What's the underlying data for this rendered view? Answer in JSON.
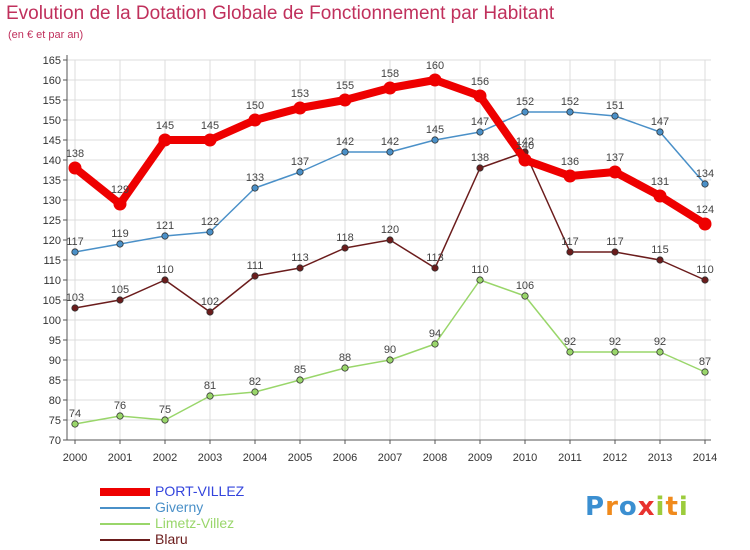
{
  "header": {
    "title": "Evolution de la Dotation Globale de Fonctionnement par Habitant",
    "subtitle": "(en € et par an)"
  },
  "logo": {
    "letters": [
      "P",
      "r",
      "o",
      "x",
      "i",
      "t",
      "i"
    ],
    "colors": [
      "#3b8fd1",
      "#f08a1c",
      "#3b8fd1",
      "#e8322f",
      "#9ccc3c",
      "#f08a1c",
      "#9ccc3c"
    ]
  },
  "chart_data": {
    "type": "line",
    "x": [
      "2000",
      "2001",
      "2002",
      "2003",
      "2004",
      "2005",
      "2006",
      "2007",
      "2008",
      "2009",
      "2010",
      "2011",
      "2012",
      "2013",
      "2014"
    ],
    "ylim": [
      70,
      165
    ],
    "y_ticks": [
      70,
      75,
      80,
      85,
      90,
      95,
      100,
      105,
      110,
      115,
      120,
      125,
      130,
      135,
      140,
      145,
      150,
      155,
      160,
      165
    ],
    "grid": true,
    "legend_position": "bottom-left",
    "series": [
      {
        "name": "PORT-VILLEZ",
        "color": "#ee0000",
        "legend_color": "#3344dd",
        "values": [
          138,
          129,
          145,
          145,
          150,
          153,
          155,
          158,
          160,
          156,
          140,
          136,
          137,
          131,
          124
        ],
        "labels": [
          "138",
          "129",
          "145",
          "145",
          "150",
          "153",
          "155",
          "158",
          "160",
          "156",
          "140",
          "136",
          "137",
          "131",
          "124"
        ]
      },
      {
        "name": "Giverny",
        "color": "#4a90c8",
        "values": [
          117,
          119,
          121,
          122,
          133,
          137,
          142,
          142,
          145,
          147,
          152,
          152,
          151,
          147,
          134
        ],
        "labels": [
          "117",
          "119",
          "121",
          "122",
          "133",
          "137",
          "142",
          "142",
          "145",
          "147",
          "152",
          "152",
          "151",
          "147",
          "134"
        ]
      },
      {
        "name": "Limetz-Villez",
        "color": "#99d66a",
        "values": [
          74,
          76,
          75,
          81,
          82,
          85,
          88,
          90,
          94,
          110,
          106,
          92,
          92,
          92,
          87
        ],
        "labels": [
          "74",
          "76",
          "75",
          "81",
          "82",
          "85",
          "88",
          "90",
          "94",
          "110",
          "106",
          "92",
          "92",
          "92",
          "87"
        ]
      },
      {
        "name": "Blaru",
        "color": "#6b1c1c",
        "values": [
          103,
          105,
          110,
          102,
          111,
          113,
          118,
          120,
          113,
          138,
          142,
          117,
          117,
          115,
          110
        ],
        "labels": [
          "103",
          "105",
          "110",
          "102",
          "111",
          "113",
          "118",
          "120",
          "113",
          "138",
          "142",
          "117",
          "117",
          "115",
          "110"
        ]
      }
    ]
  }
}
